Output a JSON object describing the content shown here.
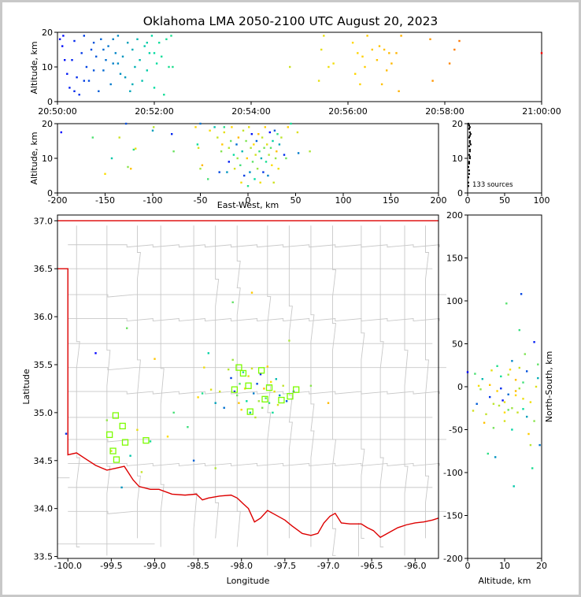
{
  "figure": {
    "title": "Oklahoma LMA 2050-2100 UTC August 20, 2023",
    "source_count_label": "133 sources"
  },
  "colors": {
    "early": "#0000ff",
    "late": "#ff0000",
    "state_border": "#dd0000",
    "county_lines": "#c8c8c8",
    "stations": "#7cfc00"
  },
  "chart_data": [
    {
      "id": "time_altitude",
      "type": "scatter",
      "ylabel": "Altitude, km",
      "ylim": [
        0,
        20
      ],
      "yticks": [
        0,
        10,
        20
      ],
      "xlim_minutes": [
        0,
        10
      ],
      "xtick_labels": [
        "20:50:00",
        "20:52:00",
        "20:54:00",
        "20:56:00",
        "20:58:00",
        "21:00:00"
      ],
      "points_time_min_alt_km": [
        [
          0.05,
          18
        ],
        [
          0.1,
          16
        ],
        [
          0.12,
          19
        ],
        [
          0.2,
          8
        ],
        [
          0.25,
          4
        ],
        [
          0.3,
          12
        ],
        [
          0.35,
          17.5
        ],
        [
          0.4,
          7
        ],
        [
          0.45,
          2
        ],
        [
          0.5,
          14
        ],
        [
          0.55,
          19
        ],
        [
          0.6,
          10
        ],
        [
          0.65,
          6
        ],
        [
          0.7,
          15
        ],
        [
          0.75,
          17
        ],
        [
          0.8,
          13
        ],
        [
          0.85,
          3
        ],
        [
          0.9,
          18
        ],
        [
          0.95,
          9
        ],
        [
          1.0,
          12
        ],
        [
          1.05,
          16
        ],
        [
          1.1,
          5
        ],
        [
          1.15,
          11
        ],
        [
          1.2,
          14
        ],
        [
          1.25,
          19
        ],
        [
          1.3,
          8
        ],
        [
          1.35,
          13
        ],
        [
          1.4,
          7
        ],
        [
          1.45,
          17
        ],
        [
          1.5,
          3
        ],
        [
          1.55,
          15
        ],
        [
          1.6,
          10
        ],
        [
          1.65,
          18
        ],
        [
          1.7,
          12
        ],
        [
          1.75,
          6
        ],
        [
          1.8,
          16
        ],
        [
          1.85,
          9
        ],
        [
          1.9,
          14
        ],
        [
          1.95,
          19
        ],
        [
          2.0,
          4
        ],
        [
          2.05,
          11
        ],
        [
          2.1,
          17
        ],
        [
          2.15,
          13
        ],
        [
          2.2,
          2
        ],
        [
          2.25,
          18
        ],
        [
          2.3,
          10
        ],
        [
          0.15,
          12
        ],
        [
          0.55,
          6
        ],
        [
          0.95,
          15
        ],
        [
          1.25,
          11
        ],
        [
          1.55,
          5
        ],
        [
          1.85,
          17
        ],
        [
          0.35,
          3
        ],
        [
          0.75,
          9
        ],
        [
          1.15,
          18
        ],
        [
          2.0,
          14
        ],
        [
          2.35,
          19
        ],
        [
          2.38,
          10
        ],
        [
          4.8,
          10
        ],
        [
          5.4,
          6
        ],
        [
          5.45,
          15
        ],
        [
          5.5,
          19
        ],
        [
          5.6,
          10
        ],
        [
          5.7,
          11
        ],
        [
          6.1,
          17
        ],
        [
          6.15,
          8
        ],
        [
          6.2,
          14
        ],
        [
          6.25,
          5
        ],
        [
          6.3,
          13
        ],
        [
          6.35,
          10
        ],
        [
          6.4,
          19
        ],
        [
          6.5,
          15
        ],
        [
          6.6,
          12
        ],
        [
          6.65,
          16
        ],
        [
          6.7,
          5
        ],
        [
          6.75,
          15
        ],
        [
          6.8,
          9
        ],
        [
          6.85,
          14
        ],
        [
          6.9,
          11
        ],
        [
          7.0,
          14
        ],
        [
          7.05,
          3
        ],
        [
          7.1,
          19
        ],
        [
          7.7,
          18
        ],
        [
          7.75,
          6
        ],
        [
          8.1,
          11
        ],
        [
          8.2,
          15
        ],
        [
          8.3,
          17.5
        ],
        [
          10.0,
          14
        ]
      ]
    },
    {
      "id": "east_west_altitude",
      "type": "scatter",
      "xlabel": "East-West, km",
      "ylabel": "Altitude, km",
      "xlim": [
        -200,
        200
      ],
      "ylim": [
        0,
        20
      ],
      "xticks": [
        -200,
        -150,
        -100,
        -50,
        0,
        50,
        100,
        150,
        200
      ],
      "yticks": [
        0,
        10,
        20
      ],
      "points_x_km_alt_km": [
        [
          -196,
          17.5
        ],
        [
          -163,
          16
        ],
        [
          -150,
          5.5
        ],
        [
          -143,
          10
        ],
        [
          -135,
          16
        ],
        [
          -128,
          20
        ],
        [
          -126,
          7.5
        ],
        [
          -123,
          7
        ],
        [
          -120,
          12.5
        ],
        [
          -118,
          12.8
        ],
        [
          -100,
          18
        ],
        [
          -99,
          19
        ],
        [
          -80,
          17
        ],
        [
          -78,
          12
        ],
        [
          -55,
          19
        ],
        [
          -53,
          14
        ],
        [
          -52,
          13
        ],
        [
          -50,
          20
        ],
        [
          -50,
          7
        ],
        [
          -48,
          8
        ],
        [
          -42,
          4
        ],
        [
          -40,
          18
        ],
        [
          -35,
          19
        ],
        [
          -32,
          16
        ],
        [
          -30,
          6
        ],
        [
          -28,
          12
        ],
        [
          -27,
          14
        ],
        [
          -25,
          19
        ],
        [
          -25,
          17.5
        ],
        [
          -22,
          6
        ],
        [
          -20,
          13
        ],
        [
          -20,
          9
        ],
        [
          -18,
          15
        ],
        [
          -17,
          19
        ],
        [
          -15,
          11
        ],
        [
          -14,
          7
        ],
        [
          -12,
          14
        ],
        [
          -11,
          10
        ],
        [
          -10,
          16
        ],
        [
          -8,
          8
        ],
        [
          -7,
          3
        ],
        [
          -6,
          12
        ],
        [
          -5,
          18
        ],
        [
          -4,
          5
        ],
        [
          -2,
          15
        ],
        [
          -1,
          10
        ],
        [
          0,
          2
        ],
        [
          1,
          19
        ],
        [
          2,
          6
        ],
        [
          3,
          13
        ],
        [
          4,
          17
        ],
        [
          5,
          9
        ],
        [
          6,
          14
        ],
        [
          7,
          4
        ],
        [
          8,
          11
        ],
        [
          9,
          15
        ],
        [
          10,
          7
        ],
        [
          11,
          17
        ],
        [
          12,
          12
        ],
        [
          13,
          3
        ],
        [
          14,
          10
        ],
        [
          15,
          16
        ],
        [
          16,
          6
        ],
        [
          17,
          13
        ],
        [
          18,
          19
        ],
        [
          19,
          9
        ],
        [
          20,
          14
        ],
        [
          21,
          5
        ],
        [
          22,
          11
        ],
        [
          23,
          17.5
        ],
        [
          24,
          13
        ],
        [
          25,
          8
        ],
        [
          26,
          15
        ],
        [
          27,
          3
        ],
        [
          28,
          18
        ],
        [
          29,
          10
        ],
        [
          30,
          12
        ],
        [
          31,
          17
        ],
        [
          32,
          7
        ],
        [
          33,
          14
        ],
        [
          35,
          16
        ],
        [
          38,
          11
        ],
        [
          40,
          10
        ],
        [
          42,
          19
        ],
        [
          45,
          20
        ],
        [
          52,
          17.5
        ],
        [
          53,
          11.5
        ],
        [
          65,
          12
        ]
      ]
    },
    {
      "id": "altitude_histogram",
      "type": "scatter",
      "xlim": [
        0,
        100
      ],
      "ylim": [
        0,
        20
      ],
      "xticks": [
        0,
        50,
        100
      ],
      "yticks": [
        0,
        10,
        20
      ],
      "points_count_alt_km": [
        [
          1,
          2
        ],
        [
          1,
          3
        ],
        [
          1,
          4.5
        ],
        [
          2,
          5.5
        ],
        [
          2,
          6.5
        ],
        [
          1,
          7.5
        ],
        [
          2,
          8.5
        ],
        [
          2,
          9
        ],
        [
          3,
          10
        ],
        [
          3,
          10.5
        ],
        [
          2,
          11
        ],
        [
          3,
          12
        ],
        [
          3,
          12.5
        ],
        [
          2,
          13.5
        ],
        [
          4,
          14
        ],
        [
          3,
          14.5
        ],
        [
          3,
          15
        ],
        [
          2,
          16
        ],
        [
          3,
          16.5
        ],
        [
          4,
          17
        ],
        [
          3,
          17.5
        ],
        [
          2,
          18.5
        ],
        [
          3,
          19
        ],
        [
          2,
          19.5
        ],
        [
          1,
          20
        ]
      ]
    },
    {
      "id": "plan_view",
      "type": "scatter",
      "xlabel": "Longitude",
      "ylabel": "Latitude",
      "xlim": [
        -100.12,
        -95.73
      ],
      "ylim": [
        33.48,
        37.06
      ],
      "xtick_labels": [
        "-100.0",
        "-99.5",
        "-99.0",
        "-98.5",
        "-98.0",
        "-97.5",
        "-97.0",
        "-96.5",
        "-96.0"
      ],
      "ytick_labels": [
        "33.5",
        "34.0",
        "34.5",
        "35.0",
        "35.5",
        "36.0",
        "36.5",
        "37.0"
      ],
      "points_lon_lat": [
        [
          -99.68,
          35.62
        ],
        [
          -99.32,
          35.88
        ],
        [
          -99.0,
          35.56
        ],
        [
          -98.78,
          35.0
        ],
        [
          -98.5,
          35.16
        ],
        [
          -98.45,
          35.2
        ],
        [
          -98.43,
          35.47
        ],
        [
          -98.38,
          35.62
        ],
        [
          -98.35,
          35.24
        ],
        [
          -98.3,
          35.1
        ],
        [
          -98.25,
          35.22
        ],
        [
          -98.2,
          35.05
        ],
        [
          -98.15,
          35.45
        ],
        [
          -98.12,
          35.36
        ],
        [
          -98.1,
          35.55
        ],
        [
          -98.08,
          35.22
        ],
        [
          -98.05,
          35.18
        ],
        [
          -98.03,
          35.1
        ],
        [
          -98.02,
          35.3
        ],
        [
          -98.0,
          35.03
        ],
        [
          -97.98,
          35.42
        ],
        [
          -97.96,
          35.25
        ],
        [
          -97.94,
          35.12
        ],
        [
          -97.92,
          35.38
        ],
        [
          -97.9,
          35.0
        ],
        [
          -97.88,
          35.46
        ],
        [
          -97.86,
          35.2
        ],
        [
          -97.84,
          34.95
        ],
        [
          -97.82,
          35.3
        ],
        [
          -97.8,
          35.12
        ],
        [
          -97.78,
          35.4
        ],
        [
          -97.76,
          35.05
        ],
        [
          -97.74,
          35.25
        ],
        [
          -97.72,
          35.15
        ],
        [
          -97.7,
          35.48
        ],
        [
          -97.68,
          35.1
        ],
        [
          -97.66,
          35.32
        ],
        [
          -97.64,
          35.0
        ],
        [
          -97.62,
          35.22
        ],
        [
          -97.6,
          35.35
        ],
        [
          -97.58,
          35.08
        ],
        [
          -97.56,
          35.18
        ],
        [
          -97.52,
          35.28
        ],
        [
          -97.48,
          35.12
        ],
        [
          -97.45,
          35.75
        ],
        [
          -97.4,
          35.22
        ],
        [
          -97.2,
          35.28
        ],
        [
          -97.0,
          35.1
        ],
        [
          -98.1,
          36.15
        ],
        [
          -97.88,
          36.25
        ],
        [
          -98.62,
          34.85
        ],
        [
          -98.85,
          34.75
        ],
        [
          -99.05,
          34.7
        ],
        [
          -99.2,
          34.82
        ],
        [
          -99.28,
          34.55
        ],
        [
          -99.5,
          34.6
        ],
        [
          -99.38,
          34.22
        ],
        [
          -99.15,
          34.38
        ],
        [
          -98.55,
          34.5
        ],
        [
          -98.3,
          34.42
        ],
        [
          -100.02,
          34.78
        ],
        [
          -99.55,
          34.92
        ]
      ],
      "station_markers_lon_lat": [
        [
          -99.45,
          34.97
        ],
        [
          -99.37,
          34.86
        ],
        [
          -99.34,
          34.69
        ],
        [
          -99.52,
          34.77
        ],
        [
          -99.48,
          34.6
        ],
        [
          -99.44,
          34.51
        ],
        [
          -99.1,
          34.71
        ],
        [
          -98.03,
          35.47
        ],
        [
          -97.98,
          35.41
        ],
        [
          -97.92,
          35.28
        ],
        [
          -98.08,
          35.24
        ],
        [
          -97.9,
          35.01
        ],
        [
          -97.77,
          35.44
        ],
        [
          -97.73,
          35.14
        ],
        [
          -97.68,
          35.26
        ],
        [
          -97.54,
          35.13
        ],
        [
          -97.44,
          35.17
        ],
        [
          -97.37,
          35.24
        ]
      ]
    },
    {
      "id": "altitude_north_south",
      "type": "scatter",
      "xlabel": "Altitude, km",
      "ylabel": "North-South, km",
      "xlim": [
        0,
        20
      ],
      "ylim": [
        -200,
        200
      ],
      "xticks": [
        0,
        10,
        20
      ],
      "yticks": [
        -200,
        -150,
        -100,
        -50,
        0,
        50,
        100,
        150,
        200
      ],
      "points_alt_km_y_km": [
        [
          0,
          17
        ],
        [
          1.5,
          -28
        ],
        [
          2,
          15
        ],
        [
          2.5,
          -20
        ],
        [
          3,
          1
        ],
        [
          3.5,
          -3
        ],
        [
          4,
          9
        ],
        [
          4.5,
          -42
        ],
        [
          5,
          -32
        ],
        [
          5.5,
          -78
        ],
        [
          6,
          -12
        ],
        [
          6.5,
          19
        ],
        [
          7,
          -48
        ],
        [
          7.5,
          -82
        ],
        [
          8,
          -5
        ],
        [
          8.5,
          -22
        ],
        [
          9,
          12
        ],
        [
          9.5,
          -16
        ],
        [
          10,
          -40
        ],
        [
          10.5,
          97
        ],
        [
          11,
          -9
        ],
        [
          11.5,
          20
        ],
        [
          12,
          -25
        ],
        [
          12.5,
          -116
        ],
        [
          13,
          8
        ],
        [
          13.5,
          -30
        ],
        [
          14,
          66
        ],
        [
          14.5,
          108
        ],
        [
          15,
          -14
        ],
        [
          15.5,
          38
        ],
        [
          16,
          -35
        ],
        [
          16.5,
          -55
        ],
        [
          17,
          -68
        ],
        [
          17.5,
          -95
        ],
        [
          18,
          52
        ],
        [
          18.5,
          0
        ],
        [
          19,
          26
        ],
        [
          19.5,
          -68
        ],
        [
          10,
          -30
        ],
        [
          11,
          14
        ],
        [
          12,
          -50
        ],
        [
          13,
          -5
        ],
        [
          14,
          22
        ],
        [
          15,
          5
        ],
        [
          16,
          18
        ],
        [
          17,
          -18
        ],
        [
          18,
          -40
        ],
        [
          19,
          10
        ],
        [
          6,
          2
        ],
        [
          7,
          -20
        ],
        [
          8,
          24
        ],
        [
          9,
          -2
        ],
        [
          10,
          -18
        ],
        [
          11,
          -27
        ],
        [
          12,
          30
        ],
        [
          13,
          -10
        ],
        [
          14,
          -2
        ],
        [
          15,
          -26
        ]
      ]
    }
  ],
  "axes_text": {
    "time_ylabel": "Altitude, km",
    "ew_xlabel": "East-West, km",
    "ew_ylabel": "Altitude, km",
    "plan_xlabel": "Longitude",
    "plan_ylabel": "Latitude",
    "ns_xlabel": "Altitude, km",
    "ns_ylabel": "North-South, km"
  }
}
